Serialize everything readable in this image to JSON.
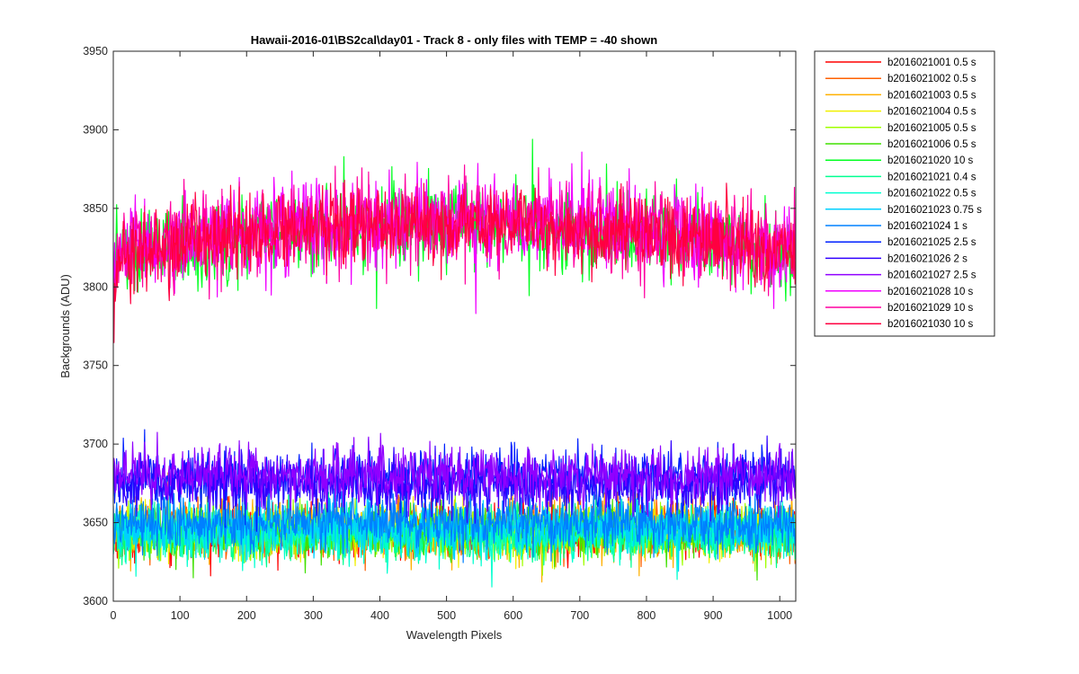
{
  "chart_data": {
    "type": "line",
    "title": "Hawaii-2016-01\\BS2cal\\day01 - Track 8 - only files with TEMP = -40 shown",
    "xlabel": "Wavelength Pixels",
    "ylabel": "Backgrounds (ADU)",
    "xlim": [
      0,
      1024
    ],
    "ylim": [
      3600,
      3950
    ],
    "xticks": [
      "0",
      "100",
      "200",
      "300",
      "400",
      "500",
      "600",
      "700",
      "800",
      "900",
      "1000"
    ],
    "yticks": [
      "3600",
      "3650",
      "3700",
      "3750",
      "3800",
      "3850",
      "3900",
      "3950"
    ],
    "grid": false,
    "legend_position": "outside-top-right",
    "n_points": 1024,
    "series": [
      {
        "name": "b2016021001 0.5 s",
        "color": "#ff0000",
        "mean": 3645,
        "spread": 11
      },
      {
        "name": "b2016021002 0.5 s",
        "color": "#ff6000",
        "mean": 3645,
        "spread": 11
      },
      {
        "name": "b2016021003 0.5 s",
        "color": "#ffb000",
        "mean": 3645,
        "spread": 11
      },
      {
        "name": "b2016021004 0.5 s",
        "color": "#f0f000",
        "mean": 3645,
        "spread": 11
      },
      {
        "name": "b2016021005 0.5 s",
        "color": "#a0ff00",
        "mean": 3644,
        "spread": 11
      },
      {
        "name": "b2016021006 0.5 s",
        "color": "#40e000",
        "mean": 3644,
        "spread": 11
      },
      {
        "name": "b2016021020 10 s",
        "color": "#00ff20",
        "mean": 3834,
        "spread": 18
      },
      {
        "name": "b2016021021 0.4 s",
        "color": "#00ff90",
        "mean": 3643,
        "spread": 11
      },
      {
        "name": "b2016021022 0.5 s",
        "color": "#00ffd0",
        "mean": 3643,
        "spread": 11
      },
      {
        "name": "b2016021023 0.75 s",
        "color": "#00d0ff",
        "mean": 3647,
        "spread": 11
      },
      {
        "name": "b2016021024 1 s",
        "color": "#0080ff",
        "mean": 3650,
        "spread": 11
      },
      {
        "name": "b2016021025 2.5 s",
        "color": "#0020ff",
        "mean": 3679,
        "spread": 12
      },
      {
        "name": "b2016021026 2 s",
        "color": "#3000ff",
        "mean": 3675,
        "spread": 12
      },
      {
        "name": "b2016021027 2.5 s",
        "color": "#9000ff",
        "mean": 3680,
        "spread": 12
      },
      {
        "name": "b2016021028 10 s",
        "color": "#f000ff",
        "mean": 3837,
        "spread": 19
      },
      {
        "name": "b2016021029 10 s",
        "color": "#ff00a0",
        "mean": 3836,
        "spread": 18
      },
      {
        "name": "b2016021030 10 s",
        "color": "#ff0040",
        "mean": 3835,
        "spread": 17
      }
    ]
  }
}
